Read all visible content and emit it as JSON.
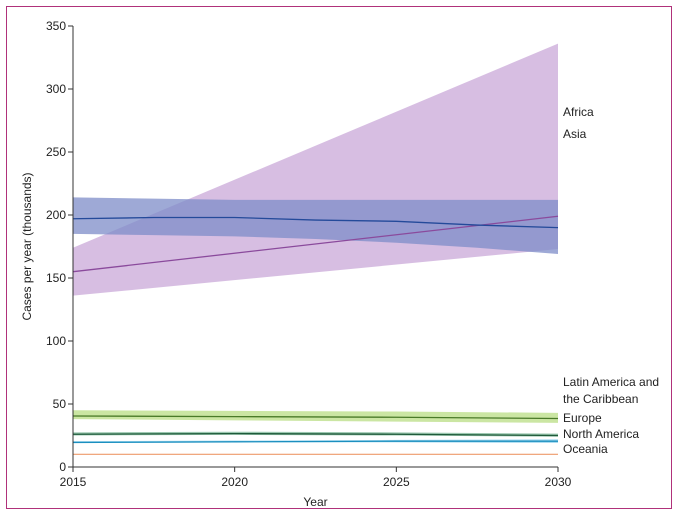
{
  "chart_data": {
    "type": "line",
    "title": "",
    "xlabel": "Year",
    "ylabel": "Cases per year (thousands)",
    "xlim": [
      2015,
      2030
    ],
    "ylim": [
      0,
      350
    ],
    "xticks": [
      "2015",
      "2020",
      "2025",
      "2030"
    ],
    "yticks": [
      "0",
      "50",
      "100",
      "150",
      "200",
      "250",
      "300",
      "350"
    ],
    "series": [
      {
        "name": "Africa",
        "label_lines": [
          "Africa"
        ],
        "color": "#8a4a9c",
        "band_color": "#c9a8d8",
        "x": [
          2015,
          2030
        ],
        "values": [
          155,
          199
        ],
        "lower": [
          136,
          173
        ],
        "upper": [
          174,
          336
        ]
      },
      {
        "name": "Asia",
        "label_lines": [
          "Asia"
        ],
        "color": "#244a9a",
        "band_color": "#7e8cc8",
        "x": [
          2015,
          2017.5,
          2020,
          2022.5,
          2025,
          2027.5,
          2030
        ],
        "values": [
          197,
          198,
          198,
          196,
          195,
          192,
          190
        ],
        "lower": [
          185,
          184,
          183,
          181,
          178,
          174,
          169
        ],
        "upper": [
          214,
          213,
          212,
          212,
          212,
          212,
          212
        ]
      },
      {
        "name": "Latin America and the Caribbean",
        "label_lines": [
          "Latin America and",
          "the Caribbean"
        ],
        "color": "#4a7a28",
        "band_color": "#b9dd84",
        "x": [
          2015,
          2020,
          2025,
          2030
        ],
        "values": [
          40.5,
          40,
          39.5,
          38.5
        ],
        "lower": [
          38,
          37,
          36,
          35
        ],
        "upper": [
          45,
          44.5,
          44,
          43
        ]
      },
      {
        "name": "Europe",
        "label_lines": [
          "Europe"
        ],
        "color": "#1f5a3a",
        "band_color": "#78b494",
        "x": [
          2015,
          2020,
          2025,
          2030
        ],
        "values": [
          26,
          26.5,
          26,
          25
        ],
        "lower": [
          25,
          25.5,
          25,
          24
        ],
        "upper": [
          27.5,
          28,
          27.5,
          26.5
        ]
      },
      {
        "name": "North America",
        "label_lines": [
          "North America"
        ],
        "color": "#1b8fbf",
        "band_color": "#8fd0ec",
        "x": [
          2015,
          2020,
          2025,
          2030
        ],
        "values": [
          19.5,
          20,
          20.5,
          20.5
        ],
        "lower": [
          19,
          19.5,
          19.5,
          19
        ],
        "upper": [
          20.5,
          21,
          21.5,
          22
        ]
      },
      {
        "name": "Oceania",
        "label_lines": [
          "Oceania"
        ],
        "color": "#f0a77e",
        "band_color": "#f8d4bf",
        "x": [
          2015,
          2020,
          2025,
          2030
        ],
        "values": [
          10,
          10,
          10,
          10
        ],
        "lower": [
          9.5,
          9.5,
          9.5,
          9.5
        ],
        "upper": [
          10.5,
          10.5,
          10.5,
          10.5
        ]
      }
    ]
  }
}
